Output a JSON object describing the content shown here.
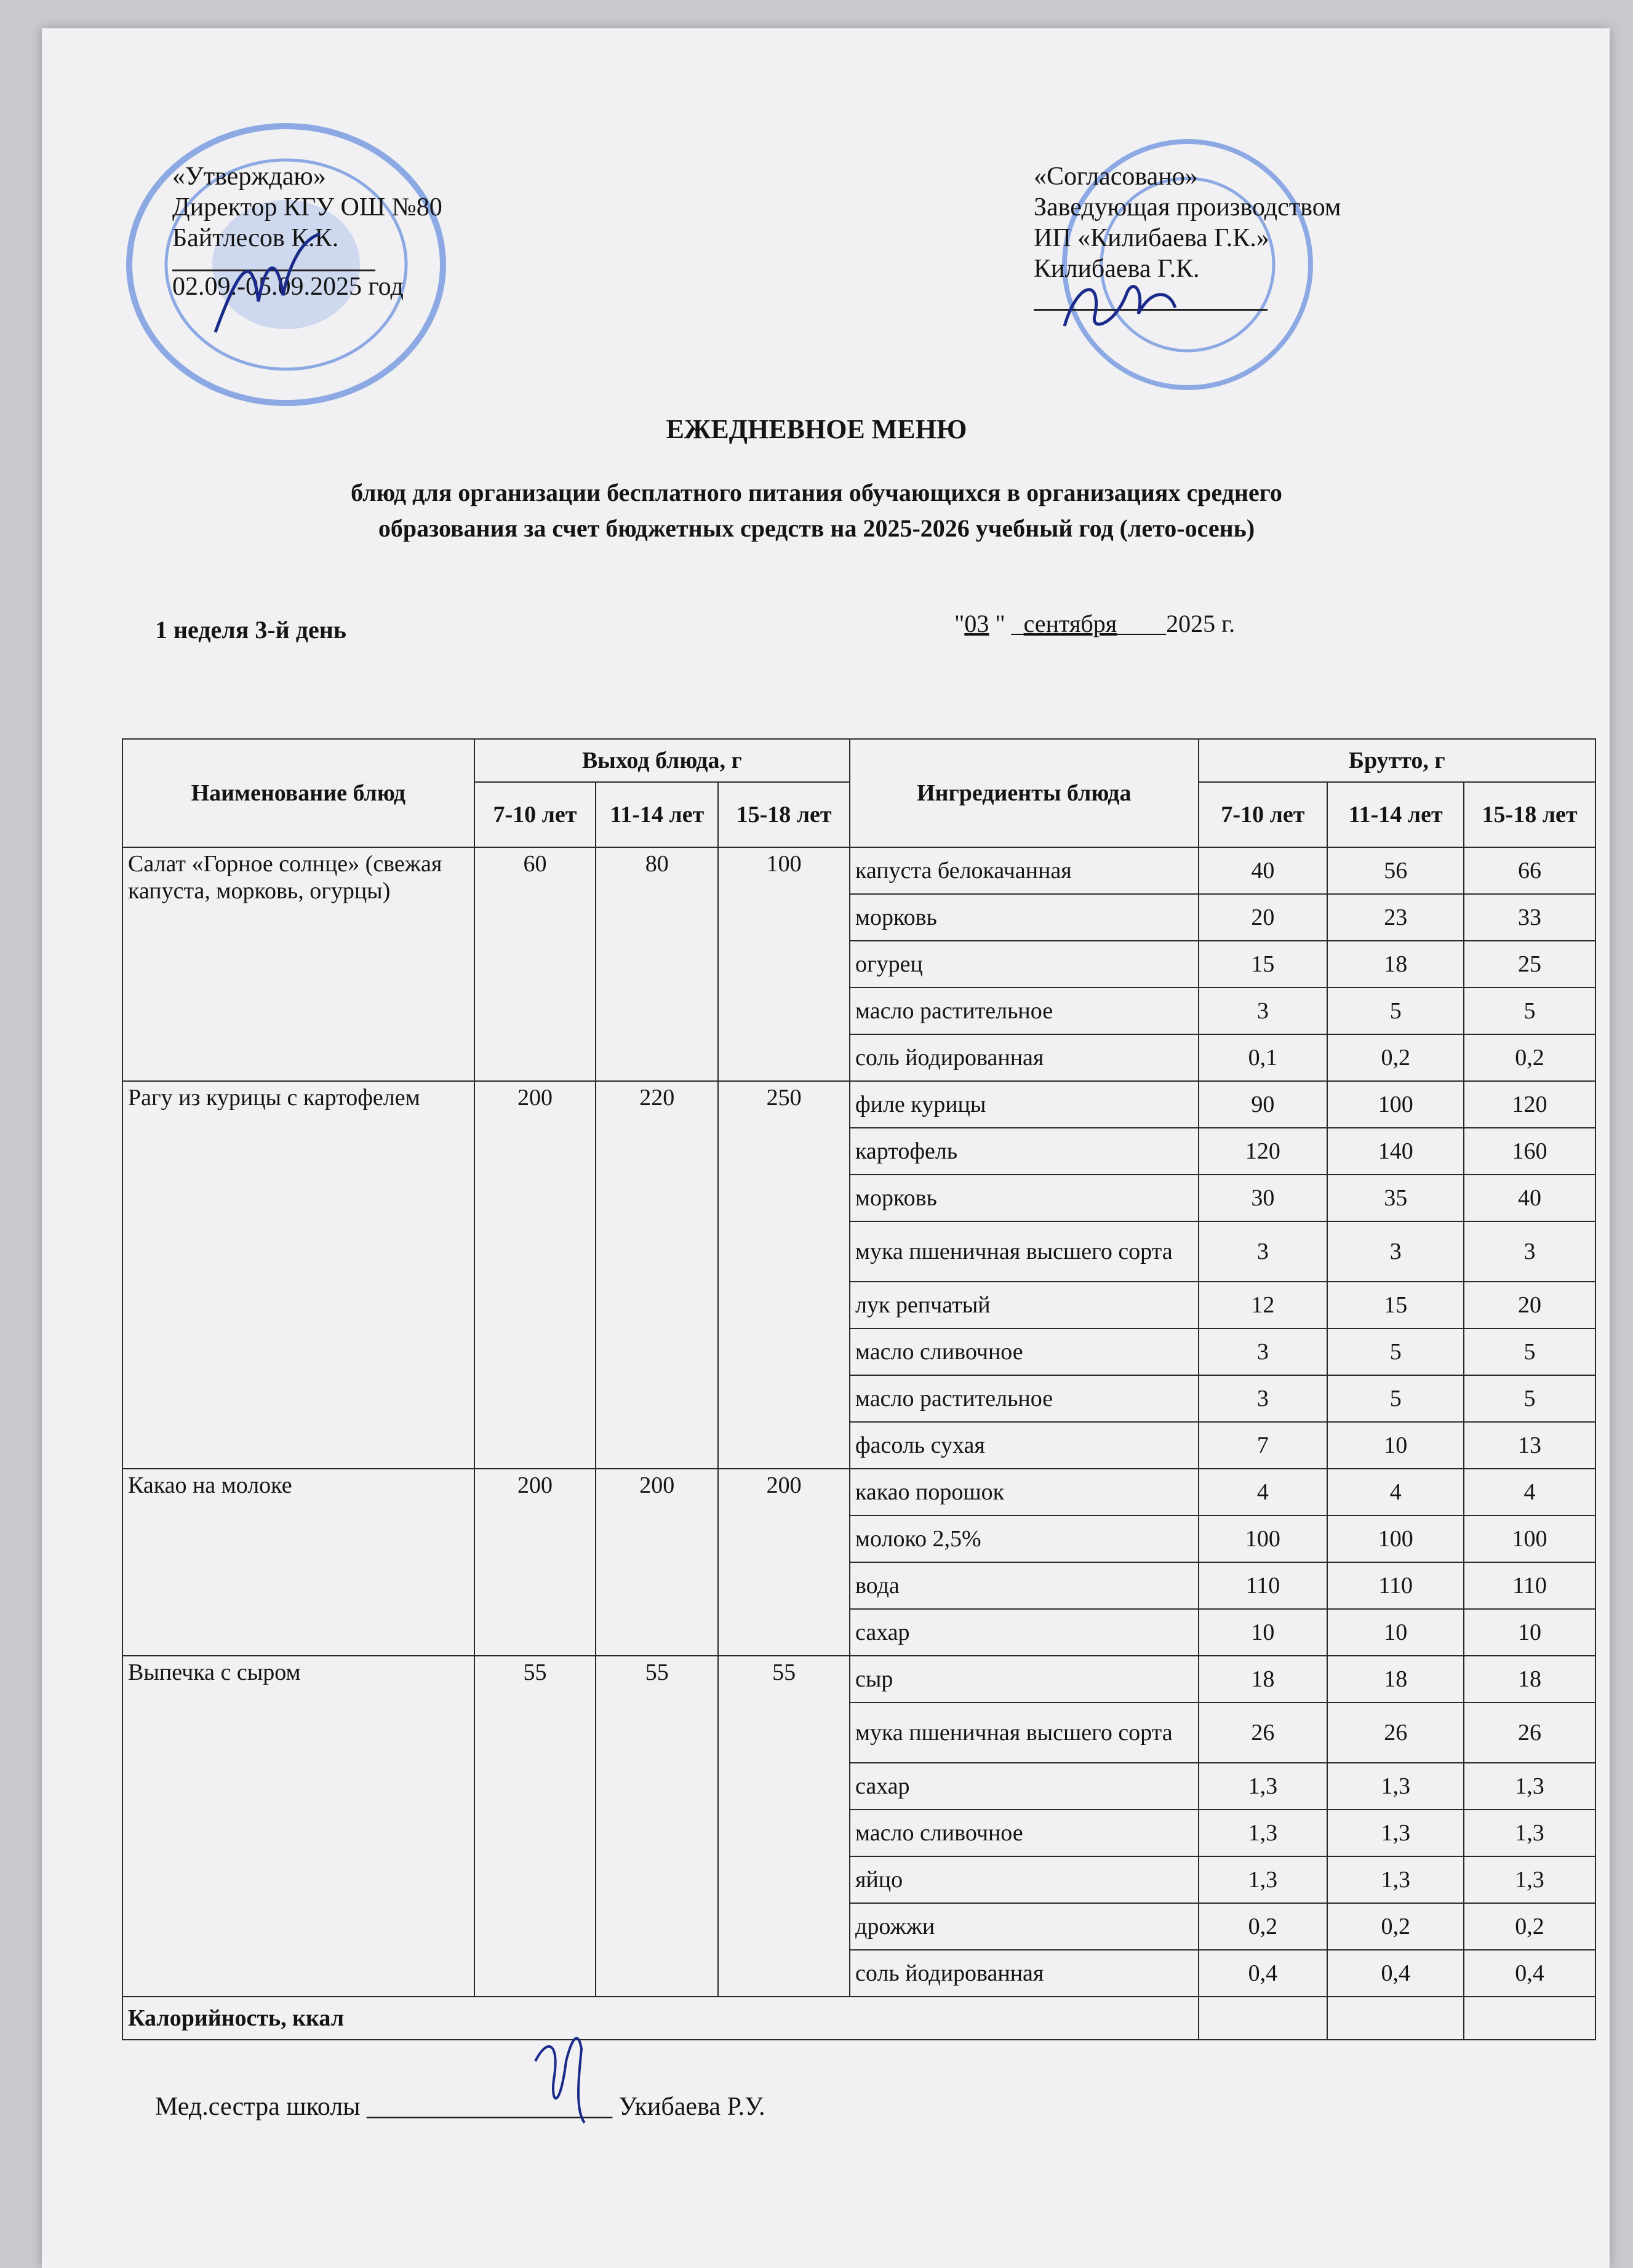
{
  "approve": {
    "label": "«Утверждаю»",
    "position": "Директор КГУ ОШ №80",
    "name": "Байтлесов К.К.",
    "period": "02.09.-05.09.2025 год"
  },
  "agreed": {
    "label": "«Согласовано»",
    "position": "Заведующая производством",
    "org": "ИП «Килибаева Г.К.»",
    "name": "Килибаева Г.К."
  },
  "title": "ЕЖЕДНЕВНОЕ МЕНЮ",
  "subtitle_line1": "блюд для организации бесплатного питания обучающихся в организациях среднего",
  "subtitle_line2": "образования за счет бюджетных средств на 2025-2026 учебный год (лето-осень)",
  "week_day": "1 неделя 3-й день",
  "date": {
    "q1": "\"",
    "day": "03",
    "q2": " \" _",
    "month": "сентября",
    "tail": "____2025 г."
  },
  "table": {
    "col_name": "Наименование блюд",
    "col_output": "Выход блюда, г",
    "col_ingredients": "Ингредиенты блюда",
    "col_brutto": "Брутто, г",
    "ages": [
      "7-10 лет",
      "11-14 лет",
      "15-18 лет"
    ],
    "calories_label": "Калорийность, ккал",
    "dishes": [
      {
        "name": "Салат «Горное солнце» (свежая капуста, морковь, огурцы)",
        "output": [
          "60",
          "80",
          "100"
        ],
        "ingredients": [
          {
            "name": "капуста белокачанная",
            "b": [
              "40",
              "56",
              "66"
            ]
          },
          {
            "name": "морковь",
            "b": [
              "20",
              "23",
              "33"
            ]
          },
          {
            "name": "огурец",
            "b": [
              "15",
              "18",
              "25"
            ]
          },
          {
            "name": "масло растительное",
            "b": [
              "3",
              "5",
              "5"
            ]
          },
          {
            "name": "соль йодированная",
            "b": [
              "0,1",
              "0,2",
              "0,2"
            ]
          }
        ]
      },
      {
        "name": "Рагу из курицы с картофелем",
        "output": [
          "200",
          "220",
          "250"
        ],
        "ingredients": [
          {
            "name": "филе курицы",
            "b": [
              "90",
              "100",
              "120"
            ]
          },
          {
            "name": "картофель",
            "b": [
              "120",
              "140",
              "160"
            ]
          },
          {
            "name": "морковь",
            "b": [
              "30",
              "35",
              "40"
            ]
          },
          {
            "name": "мука пшеничная высшего сорта",
            "b": [
              "3",
              "3",
              "3"
            ]
          },
          {
            "name": "лук репчатый",
            "b": [
              "12",
              "15",
              "20"
            ]
          },
          {
            "name": "масло сливочное",
            "b": [
              "3",
              "5",
              "5"
            ]
          },
          {
            "name": "масло растительное",
            "b": [
              "3",
              "5",
              "5"
            ]
          },
          {
            "name": "фасоль сухая",
            "b": [
              "7",
              "10",
              "13"
            ]
          }
        ]
      },
      {
        "name": "Какао на молоке",
        "output": [
          "200",
          "200",
          "200"
        ],
        "ingredients": [
          {
            "name": "какао порошок",
            "b": [
              "4",
              "4",
              "4"
            ]
          },
          {
            "name": "молоко 2,5%",
            "b": [
              "100",
              "100",
              "100"
            ]
          },
          {
            "name": "вода",
            "b": [
              "110",
              "110",
              "110"
            ]
          },
          {
            "name": "сахар",
            "b": [
              "10",
              "10",
              "10"
            ]
          }
        ]
      },
      {
        "name": "Выпечка с сыром",
        "output": [
          "55",
          "55",
          "55"
        ],
        "ingredients": [
          {
            "name": "сыр",
            "b": [
              "18",
              "18",
              "18"
            ]
          },
          {
            "name": "мука пшеничная высшего сорта",
            "b": [
              "26",
              "26",
              "26"
            ]
          },
          {
            "name": "сахар",
            "b": [
              "1,3",
              "1,3",
              "1,3"
            ]
          },
          {
            "name": "масло сливочное",
            "b": [
              "1,3",
              "1,3",
              "1,3"
            ]
          },
          {
            "name": "яйцо",
            "b": [
              "1,3",
              "1,3",
              "1,3"
            ]
          },
          {
            "name": "дрожжи",
            "b": [
              "0,2",
              "0,2",
              "0,2"
            ]
          },
          {
            "name": "соль йодированная",
            "b": [
              "0,4",
              "0,4",
              "0,4"
            ]
          }
        ]
      }
    ]
  },
  "footer": {
    "label": "Мед.сестра школы",
    "line": "___________________",
    "name": "Укибаева Р.У."
  },
  "colors": {
    "stamp": "#3b6fd6",
    "signature": "#1a2a8a",
    "paper": "#f1f1f4"
  }
}
